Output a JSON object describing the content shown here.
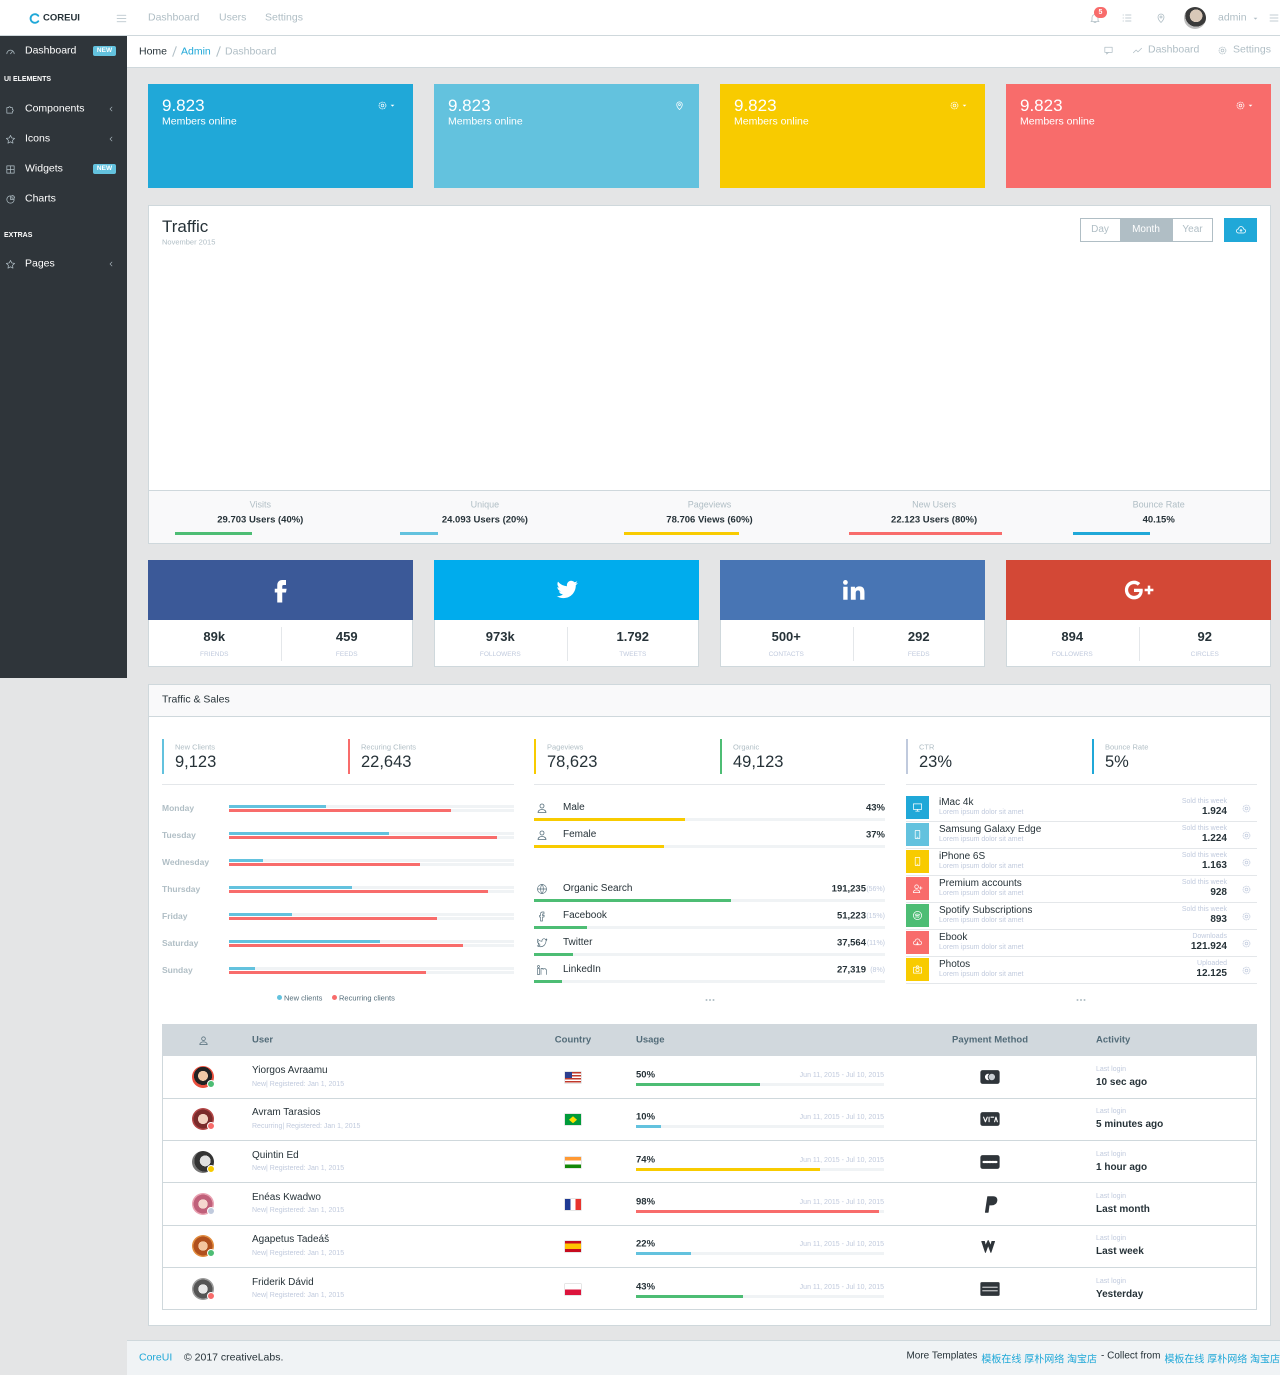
{
  "header": {
    "brand": "COREUI",
    "nav": [
      "Dashboard",
      "Users",
      "Settings"
    ],
    "notifications": "5",
    "user": "admin"
  },
  "sidebar": {
    "items": [
      {
        "label": "Dashboard",
        "badge": "NEW"
      },
      {
        "heading": "UI ELEMENTS"
      },
      {
        "label": "Components",
        "submenu": true
      },
      {
        "label": "Icons",
        "submenu": true
      },
      {
        "label": "Widgets",
        "badge": "NEW"
      },
      {
        "label": "Charts"
      },
      {
        "heading": "EXTRAS"
      },
      {
        "label": "Pages",
        "submenu": true
      }
    ]
  },
  "breadcrumb": {
    "items": [
      "Home",
      "Admin",
      "Dashboard"
    ],
    "actions": [
      "Dashboard",
      "Settings"
    ]
  },
  "cards": [
    {
      "value": "9.823",
      "label": "Members online",
      "color": "#20a8d8"
    },
    {
      "value": "9.823",
      "label": "Members online",
      "color": "#63c2de"
    },
    {
      "value": "9.823",
      "label": "Members online",
      "color": "#f8cb00"
    },
    {
      "value": "9.823",
      "label": "Members online",
      "color": "#f86c6b"
    }
  ],
  "traffic": {
    "title": "Traffic",
    "subtitle": "November 2015",
    "periods": [
      "Day",
      "Month",
      "Year"
    ],
    "active_period": "Month",
    "stats": [
      {
        "label": "Visits",
        "value": "29.703 Users (40%)",
        "progress": 40,
        "color": "#4dbd74"
      },
      {
        "label": "Unique",
        "value": "24.093 Users (20%)",
        "progress": 20,
        "color": "#63c2de"
      },
      {
        "label": "Pageviews",
        "value": "78.706 Views (60%)",
        "progress": 60,
        "color": "#f8cb00"
      },
      {
        "label": "New Users",
        "value": "22.123 Users (80%)",
        "progress": 80,
        "color": "#f86c6b"
      },
      {
        "label": "Bounce Rate",
        "value": "40.15%",
        "progress": 40,
        "color": "#20a8d8"
      }
    ]
  },
  "social": [
    {
      "icon": "facebook",
      "color": "#3b5998",
      "stats": [
        {
          "value": "89k",
          "label": "FRIENDS"
        },
        {
          "value": "459",
          "label": "FEEDS"
        }
      ]
    },
    {
      "icon": "twitter",
      "color": "#00aced",
      "stats": [
        {
          "value": "973k",
          "label": "FOLLOWERS"
        },
        {
          "value": "1.792",
          "label": "TWEETS"
        }
      ]
    },
    {
      "icon": "linkedin",
      "color": "#4875b4",
      "stats": [
        {
          "value": "500+",
          "label": "CONTACTS"
        },
        {
          "value": "292",
          "label": "FEEDS"
        }
      ]
    },
    {
      "icon": "google-plus",
      "color": "#d34836",
      "stats": [
        {
          "value": "894",
          "label": "FOLLOWERS"
        },
        {
          "value": "92",
          "label": "CIRCLES"
        }
      ]
    }
  ],
  "traffic_sales": {
    "title": "Traffic & Sales",
    "callouts": [
      {
        "label": "New Clients",
        "value": "9,123",
        "color": "#63c2de"
      },
      {
        "label": "Recuring Clients",
        "value": "22,643",
        "color": "#f86c6b"
      },
      {
        "label": "Pageviews",
        "value": "78,623",
        "color": "#f8cb00"
      },
      {
        "label": "Organic",
        "value": "49,123",
        "color": "#4dbd74"
      },
      {
        "label": "CTR",
        "value": "23%",
        "color": "#c0cadd"
      },
      {
        "label": "Bounce Rate",
        "value": "5%",
        "color": "#20a8d8"
      }
    ],
    "days": [
      {
        "day": "Monday",
        "new": 34,
        "recurring": 78
      },
      {
        "day": "Tuesday",
        "new": 56,
        "recurring": 94
      },
      {
        "day": "Wednesday",
        "new": 12,
        "recurring": 67
      },
      {
        "day": "Thursday",
        "new": 43,
        "recurring": 91
      },
      {
        "day": "Friday",
        "new": 22,
        "recurring": 73
      },
      {
        "day": "Saturday",
        "new": 53,
        "recurring": 82
      },
      {
        "day": "Sunday",
        "new": 9,
        "recurring": 69
      }
    ],
    "series": [
      {
        "name": "New clients",
        "color": "#63c2de"
      },
      {
        "name": "Recurring clients",
        "color": "#f86c6b"
      }
    ],
    "gender": {
      "color": "#f8cb00",
      "items": [
        {
          "label": "Male",
          "value": 43,
          "value_label": "43%"
        },
        {
          "label": "Female",
          "value": 37,
          "value_label": "37%"
        }
      ]
    },
    "sources": {
      "color": "#4dbd74",
      "items": [
        {
          "label": "Organic Search",
          "count": "191,235",
          "share": 56,
          "share_label": "(56%)"
        },
        {
          "label": "Facebook",
          "count": "51,223",
          "share": 15,
          "share_label": "(15%)"
        },
        {
          "label": "Twitter",
          "count": "37,564",
          "share": 11,
          "share_label": "(11%)"
        },
        {
          "label": "LinkedIn",
          "count": "27,319",
          "share": 8,
          "share_label": "(8%)"
        }
      ]
    },
    "products": [
      {
        "title": "iMac 4k",
        "subtitle": "Lorem ipsum dolor sit amet",
        "metric": "Sold this week",
        "value": "1.924",
        "color": "#20a8d8"
      },
      {
        "title": "Samsung Galaxy Edge",
        "subtitle": "Lorem ipsum dolor sit amet",
        "metric": "Sold this week",
        "value": "1.224",
        "color": "#63c2de"
      },
      {
        "title": "iPhone 6S",
        "subtitle": "Lorem ipsum dolor sit amet",
        "metric": "Sold this week",
        "value": "1.163",
        "color": "#f8cb00"
      },
      {
        "title": "Premium accounts",
        "subtitle": "Lorem ipsum dolor sit amet",
        "metric": "Sold this week",
        "value": "928",
        "color": "#f86c6b"
      },
      {
        "title": "Spotify Subscriptions",
        "subtitle": "Lorem ipsum dolor sit amet",
        "metric": "Sold this week",
        "value": "893",
        "color": "#4dbd74"
      },
      {
        "title": "Ebook",
        "subtitle": "Lorem ipsum dolor sit amet",
        "metric": "Downloads",
        "value": "121.924",
        "color": "#f86c6b"
      },
      {
        "title": "Photos",
        "subtitle": "Lorem ipsum dolor sit amet",
        "metric": "Uploaded",
        "value": "12.125",
        "color": "#f8cb00"
      }
    ]
  },
  "users_table": {
    "columns": [
      "User",
      "Country",
      "Usage",
      "Payment Method",
      "Activity"
    ],
    "rows": [
      {
        "name": "Yiorgos Avraamu",
        "meta": "New| Registered: Jan 1, 2015",
        "status_color": "#4dbd74",
        "usage": 50,
        "usage_label": "50%",
        "bar_color": "#4dbd74",
        "period": "Jun 11, 2015 - Jul 10, 2015",
        "activity_label": "Last login",
        "activity": "10 sec ago"
      },
      {
        "name": "Avram Tarasios",
        "meta": "Recurring| Registered: Jan 1, 2015",
        "status_color": "#f86c6b",
        "usage": 10,
        "usage_label": "10%",
        "bar_color": "#63c2de",
        "period": "Jun 11, 2015 - Jul 10, 2015",
        "activity_label": "Last login",
        "activity": "5 minutes ago"
      },
      {
        "name": "Quintin Ed",
        "meta": "New| Registered: Jan 1, 2015",
        "status_color": "#f8cb00",
        "usage": 74,
        "usage_label": "74%",
        "bar_color": "#f8cb00",
        "period": "Jun 11, 2015 - Jul 10, 2015",
        "activity_label": "Last login",
        "activity": "1 hour ago"
      },
      {
        "name": "Enéas Kwadwo",
        "meta": "New| Registered: Jan 1, 2015",
        "status_color": "#c0cadd",
        "usage": 98,
        "usage_label": "98%",
        "bar_color": "#f86c6b",
        "period": "Jun 11, 2015 - Jul 10, 2015",
        "activity_label": "Last login",
        "activity": "Last month"
      },
      {
        "name": "Agapetus Tadeáš",
        "meta": "New| Registered: Jan 1, 2015",
        "status_color": "#4dbd74",
        "usage": 22,
        "usage_label": "22%",
        "bar_color": "#63c2de",
        "period": "Jun 11, 2015 - Jul 10, 2015",
        "activity_label": "Last login",
        "activity": "Last week"
      },
      {
        "name": "Friderik Dávid",
        "meta": "New| Registered: Jan 1, 2015",
        "status_color": "#f86c6b",
        "usage": 43,
        "usage_label": "43%",
        "bar_color": "#4dbd74",
        "period": "Jun 11, 2015 - Jul 10, 2015",
        "activity_label": "Last login",
        "activity": "Yesterday"
      }
    ]
  },
  "footer": {
    "brand": "CoreUI",
    "copyright": "© 2017 creativeLabs.",
    "more": "More Templates",
    "links": "模板在线 厚朴网络 淘宝店",
    "collect": "- Collect from",
    "links_2": "模板在线 厚朴网络 淘宝店"
  }
}
